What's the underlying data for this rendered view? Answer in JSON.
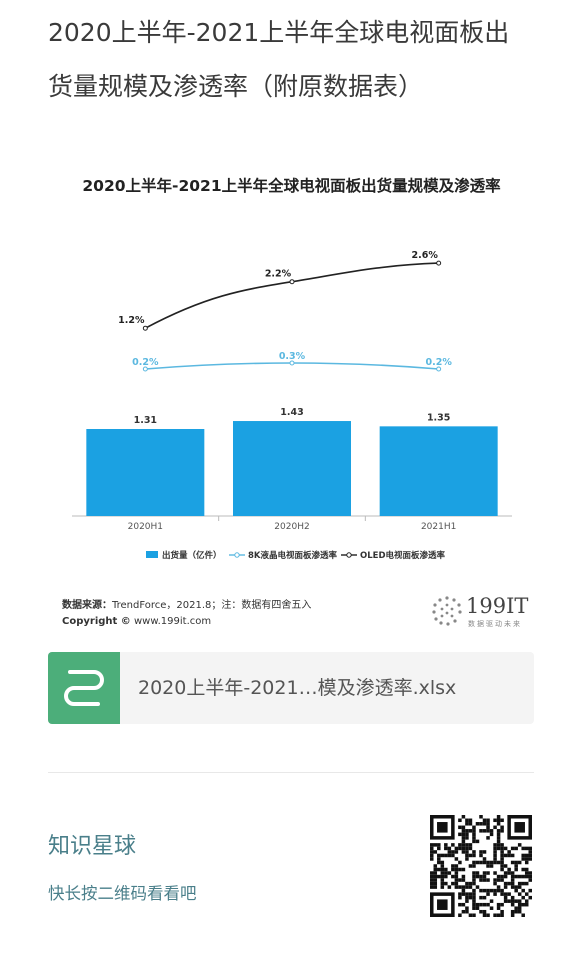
{
  "page": {
    "title_line1": "2020上半年-2021上半年全球电视面板出",
    "title_line2": "货量规模及渗透率（附原数据表）"
  },
  "chart": {
    "title": "2020上半年-2021上半年全球电视面板出货量规模及渗透率",
    "legend": {
      "bar": "出货量（亿件）",
      "line1": "8K液晶电视面板渗透率",
      "line2": "OLED电视面板渗透率"
    },
    "source_label": "数据来源：",
    "source_text": "TrendForce，2021.8；注：数据有四舍五入",
    "copyright_label": "Copyright ©",
    "copyright_text": "www.199it.com",
    "brand_number": "199IT",
    "brand_sub": "数据驱动未来"
  },
  "chart_data": {
    "type": "bar",
    "title": "2020上半年-2021上半年全球电视面板出货量规模及渗透率",
    "categories": [
      "2020H1",
      "2020H2",
      "2021H1"
    ],
    "series": [
      {
        "name": "出货量（亿件）",
        "type": "bar",
        "values": [
          1.31,
          1.43,
          1.35
        ],
        "labels": [
          "1.31",
          "1.43",
          "1.35"
        ],
        "color": "#1ba1e2"
      },
      {
        "name": "8K液晶电视面板渗透率",
        "type": "line",
        "values": [
          0.2,
          0.3,
          0.2
        ],
        "labels": [
          "0.2%",
          "0.3%",
          "0.2%"
        ],
        "color": "#5bb8e0"
      },
      {
        "name": "OLED电视面板渗透率",
        "type": "line",
        "values": [
          1.2,
          2.2,
          2.6
        ],
        "labels": [
          "1.2%",
          "2.2%",
          "2.6%"
        ],
        "color": "#222222"
      }
    ],
    "legend_position": "bottom",
    "grid": false
  },
  "file": {
    "name": "2020上半年-2021…模及渗透率.xlsx",
    "icon": "spreadsheet-s-icon",
    "icon_color": "#4cae7a"
  },
  "planet": {
    "title": "知识星球",
    "subtitle": "快长按二维码看看吧"
  },
  "qr": {
    "icon": "qr-code-icon"
  }
}
